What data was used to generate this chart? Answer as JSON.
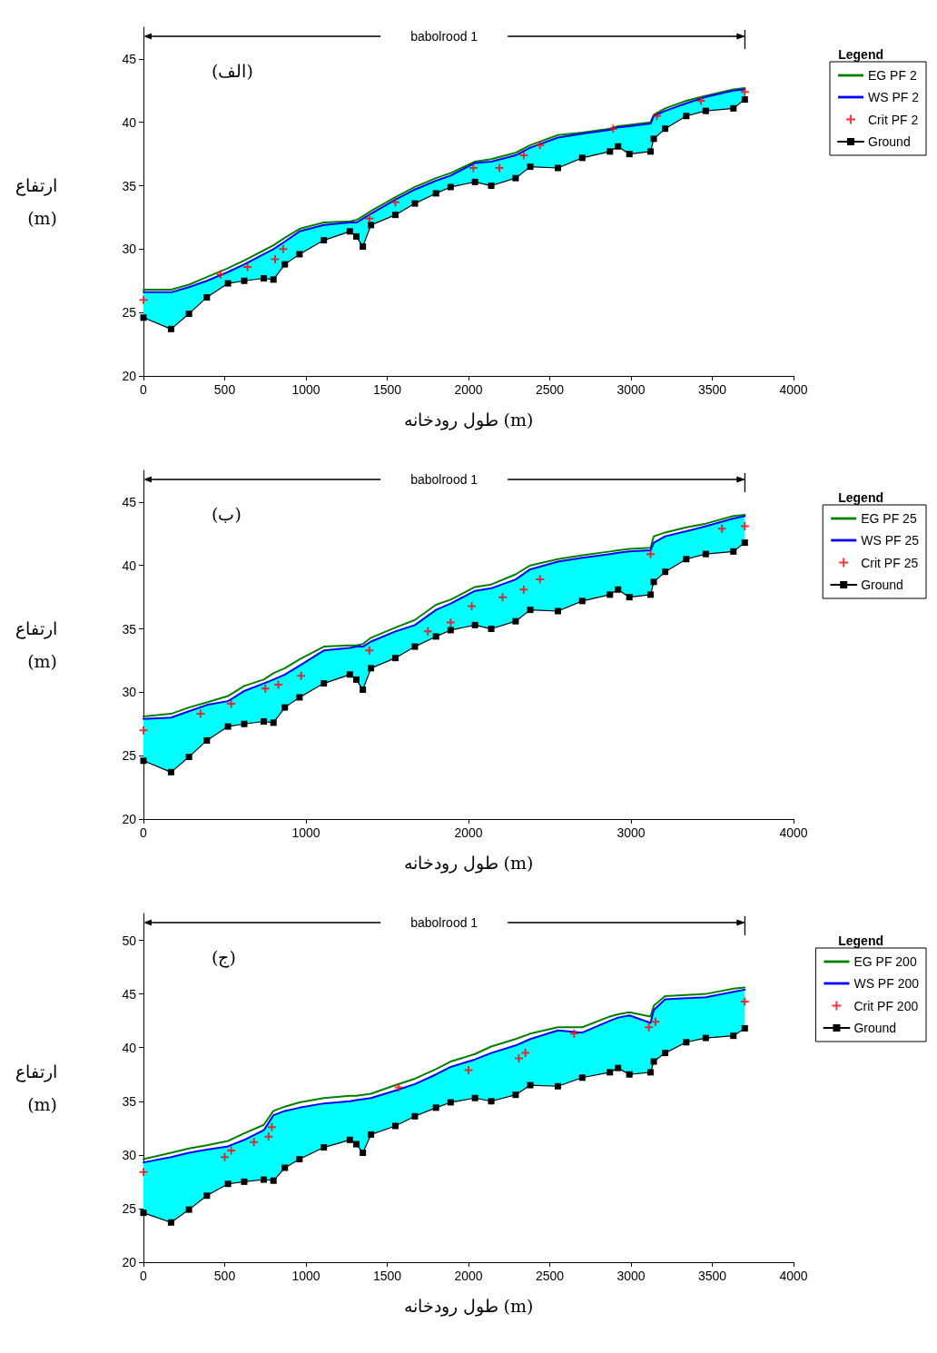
{
  "chart_data": [
    {
      "type": "line",
      "title": "(الف)",
      "xlabel": "طول رودخانه (m)",
      "ylabel": "ارتفاع (m)",
      "legend_title": "Legend",
      "legend": "right",
      "grid": false,
      "annotations": [
        "babolrood 1"
      ],
      "xlim": [
        0,
        4000
      ],
      "xticks": [
        0,
        500,
        1000,
        1500,
        2000,
        2500,
        3000,
        3500,
        4000
      ],
      "ylim": [
        20,
        47.5
      ],
      "yticks": [
        20,
        25,
        30,
        35,
        40,
        45
      ],
      "x": [
        0,
        170,
        280,
        390,
        520,
        620,
        740,
        800,
        870,
        960,
        1110,
        1270,
        1310,
        1350,
        1400,
        1550,
        1670,
        1800,
        1890,
        2040,
        2140,
        2290,
        2380,
        2550,
        2700,
        2870,
        2920,
        2990,
        3120,
        3140,
        3210,
        3340,
        3460,
        3630,
        3700
      ],
      "series": [
        {
          "name": "EG PF 2",
          "color": "#008000",
          "marker": "none",
          "line_style": "solid",
          "values": [
            26.8,
            26.8,
            27.2,
            27.8,
            28.5,
            29.1,
            29.9,
            30.3,
            30.9,
            31.6,
            32.1,
            32.2,
            32.3,
            32.6,
            33.0,
            34.1,
            34.9,
            35.6,
            36.0,
            36.9,
            37.1,
            37.6,
            38.2,
            39.0,
            39.2,
            39.5,
            39.7,
            39.8,
            40.0,
            40.6,
            41.1,
            41.7,
            42.1,
            42.6,
            42.7
          ]
        },
        {
          "name": "WS PF 2",
          "color": "#0000ff",
          "marker": "none",
          "line_style": "solid",
          "values": [
            26.6,
            26.6,
            27.0,
            27.5,
            28.2,
            28.8,
            29.6,
            30.0,
            30.6,
            31.4,
            31.9,
            32.1,
            32.1,
            32.4,
            32.8,
            33.9,
            34.7,
            35.4,
            35.8,
            36.8,
            36.9,
            37.4,
            38.0,
            38.8,
            39.1,
            39.4,
            39.6,
            39.7,
            39.9,
            40.5,
            40.9,
            41.5,
            42.0,
            42.5,
            42.6
          ],
          "lower": [
            24.6,
            23.7,
            24.9,
            26.2,
            27.3,
            27.5,
            27.7,
            27.6,
            28.8,
            29.6,
            30.7,
            31.4,
            31.0,
            30.2,
            31.9,
            32.7,
            33.6,
            34.4,
            34.9,
            35.3,
            35.0,
            35.6,
            36.5,
            36.4,
            37.2,
            37.7,
            38.1,
            37.5,
            37.7,
            38.7,
            39.5,
            40.5,
            40.9,
            41.1,
            41.8
          ],
          "upper": [
            26.6,
            26.6,
            27.0,
            27.5,
            28.2,
            28.8,
            29.6,
            30.0,
            30.6,
            31.4,
            31.9,
            32.1,
            32.1,
            32.4,
            32.8,
            33.9,
            34.7,
            35.4,
            35.8,
            36.8,
            36.9,
            37.4,
            38.0,
            38.8,
            39.1,
            39.4,
            39.6,
            39.7,
            39.9,
            40.5,
            40.9,
            41.5,
            42.0,
            42.5,
            42.6
          ]
        },
        {
          "name": "Crit PF 2",
          "type": "scatter",
          "color": "#ff0000",
          "marker": "cross",
          "x": [
            0,
            475,
            640,
            810,
            860,
            1390,
            1550,
            2030,
            2190,
            2340,
            2440,
            2890,
            3160,
            3430,
            3700
          ],
          "values": [
            26.0,
            28.0,
            28.6,
            29.2,
            30.0,
            32.4,
            33.7,
            36.4,
            36.4,
            37.4,
            38.2,
            39.5,
            40.5,
            41.7,
            42.4
          ]
        },
        {
          "name": "Ground",
          "color": "#000000",
          "marker": "square",
          "line_style": "solid",
          "values": [
            24.6,
            23.7,
            24.9,
            26.2,
            27.3,
            27.5,
            27.7,
            27.6,
            28.8,
            29.6,
            30.7,
            31.4,
            31.0,
            30.2,
            31.9,
            32.7,
            33.6,
            34.4,
            34.9,
            35.3,
            35.0,
            35.6,
            36.5,
            36.4,
            37.2,
            37.7,
            38.1,
            37.5,
            37.7,
            38.7,
            39.5,
            40.5,
            40.9,
            41.1,
            41.8
          ]
        }
      ]
    },
    {
      "type": "line",
      "title": "(ب)",
      "xlabel": "طول رودخانه (m)",
      "ylabel": "ارتفاع (m)",
      "legend_title": "Legend",
      "legend": "right",
      "grid": false,
      "annotations": [
        "babolrood 1"
      ],
      "xlim": [
        0,
        4000
      ],
      "xticks": [
        0,
        1000,
        2000,
        3000,
        4000
      ],
      "ylim": [
        20,
        47.5
      ],
      "yticks": [
        20,
        25,
        30,
        35,
        40,
        45
      ],
      "x": [
        0,
        170,
        280,
        390,
        520,
        620,
        740,
        800,
        870,
        960,
        1110,
        1270,
        1310,
        1350,
        1400,
        1550,
        1670,
        1800,
        1890,
        2040,
        2140,
        2290,
        2380,
        2550,
        2700,
        2870,
        2920,
        2990,
        3120,
        3140,
        3210,
        3340,
        3460,
        3630,
        3700
      ],
      "series": [
        {
          "name": "EG PF 25",
          "color": "#008000",
          "marker": "none",
          "line_style": "solid",
          "values": [
            28.1,
            28.3,
            28.8,
            29.2,
            29.7,
            30.5,
            31.0,
            31.5,
            31.9,
            32.6,
            33.6,
            33.7,
            33.7,
            33.8,
            34.3,
            35.1,
            35.7,
            36.9,
            37.3,
            38.3,
            38.5,
            39.3,
            40.0,
            40.5,
            40.8,
            41.1,
            41.2,
            41.3,
            41.4,
            42.3,
            42.6,
            43.0,
            43.3,
            43.9,
            44.0
          ]
        },
        {
          "name": "WS PF 25",
          "color": "#0000ff",
          "marker": "none",
          "line_style": "solid",
          "values": [
            27.9,
            28.0,
            28.5,
            29.0,
            29.3,
            30.1,
            30.7,
            31.0,
            31.4,
            32.1,
            33.3,
            33.5,
            33.6,
            33.6,
            34.0,
            34.8,
            35.3,
            36.5,
            37.0,
            38.0,
            38.2,
            38.9,
            39.7,
            40.3,
            40.6,
            40.9,
            41.0,
            41.1,
            41.2,
            41.8,
            42.3,
            42.7,
            43.1,
            43.7,
            43.9
          ],
          "lower": [
            24.6,
            23.7,
            24.9,
            26.2,
            27.3,
            27.5,
            27.7,
            27.6,
            28.8,
            29.6,
            30.7,
            31.4,
            31.0,
            30.2,
            31.9,
            32.7,
            33.6,
            34.4,
            34.9,
            35.3,
            35.0,
            35.6,
            36.5,
            36.4,
            37.2,
            37.7,
            38.1,
            37.5,
            37.7,
            38.7,
            39.5,
            40.5,
            40.9,
            41.1,
            41.8
          ],
          "upper": [
            27.9,
            28.0,
            28.5,
            29.0,
            29.3,
            30.1,
            30.7,
            31.0,
            31.4,
            32.1,
            33.3,
            33.5,
            33.6,
            33.6,
            34.0,
            34.8,
            35.3,
            36.5,
            37.0,
            38.0,
            38.2,
            38.9,
            39.7,
            40.3,
            40.6,
            40.9,
            41.0,
            41.1,
            41.2,
            41.8,
            42.3,
            42.7,
            43.1,
            43.7,
            43.9
          ]
        },
        {
          "name": "Crit PF 25",
          "type": "scatter",
          "color": "#ff0000",
          "marker": "cross",
          "x": [
            0,
            351,
            540,
            750,
            830,
            970,
            1390,
            1750,
            1890,
            2020,
            2210,
            2340,
            2440,
            3120,
            3560,
            3700
          ],
          "values": [
            27.0,
            28.3,
            29.1,
            30.3,
            30.6,
            31.3,
            33.3,
            34.8,
            35.5,
            36.8,
            37.5,
            38.1,
            38.9,
            40.9,
            42.9,
            43.1
          ]
        },
        {
          "name": "Ground",
          "color": "#000000",
          "marker": "square",
          "line_style": "solid",
          "values": [
            24.6,
            23.7,
            24.9,
            26.2,
            27.3,
            27.5,
            27.7,
            27.6,
            28.8,
            29.6,
            30.7,
            31.4,
            31.0,
            30.2,
            31.9,
            32.7,
            33.6,
            34.4,
            34.9,
            35.3,
            35.0,
            35.6,
            36.5,
            36.4,
            37.2,
            37.7,
            38.1,
            37.5,
            37.7,
            38.7,
            39.5,
            40.5,
            40.9,
            41.1,
            41.8
          ]
        }
      ]
    },
    {
      "type": "line",
      "title": "(ج)",
      "xlabel": "طول رودخانه (m)",
      "ylabel": "ارتفاع (m)",
      "legend_title": "Legend",
      "legend": "right",
      "grid": false,
      "annotations": [
        "babolrood 1"
      ],
      "xlim": [
        0,
        4000
      ],
      "xticks": [
        0,
        500,
        1000,
        1500,
        2000,
        2500,
        3000,
        3500,
        4000
      ],
      "ylim": [
        20,
        52.5
      ],
      "yticks": [
        20,
        25,
        30,
        35,
        40,
        45,
        50
      ],
      "x": [
        0,
        170,
        280,
        390,
        520,
        620,
        740,
        800,
        870,
        960,
        1110,
        1270,
        1310,
        1350,
        1400,
        1550,
        1670,
        1800,
        1890,
        2040,
        2140,
        2290,
        2380,
        2550,
        2700,
        2870,
        2920,
        2990,
        3120,
        3140,
        3210,
        3340,
        3460,
        3630,
        3700
      ],
      "series": [
        {
          "name": "EG PF 200",
          "color": "#008000",
          "marker": "none",
          "line_style": "solid",
          "values": [
            29.6,
            30.2,
            30.6,
            30.9,
            31.3,
            32.0,
            32.8,
            34.1,
            34.5,
            34.9,
            35.3,
            35.5,
            35.5,
            35.6,
            35.7,
            36.5,
            37.1,
            38.0,
            38.7,
            39.4,
            40.1,
            40.8,
            41.3,
            41.9,
            41.9,
            42.9,
            43.1,
            43.3,
            42.9,
            43.9,
            44.8,
            44.9,
            45.0,
            45.5,
            45.6
          ]
        },
        {
          "name": "WS PF 200",
          "color": "#0000ff",
          "marker": "none",
          "line_style": "solid",
          "values": [
            29.3,
            29.8,
            30.2,
            30.5,
            30.8,
            31.4,
            32.3,
            33.7,
            34.1,
            34.4,
            34.8,
            35.0,
            35.1,
            35.2,
            35.3,
            36.0,
            36.6,
            37.5,
            38.2,
            38.9,
            39.5,
            40.2,
            40.8,
            41.6,
            41.4,
            42.5,
            42.8,
            43.0,
            42.3,
            43.5,
            44.5,
            44.6,
            44.7,
            45.2,
            45.4
          ],
          "lower": [
            24.6,
            23.7,
            24.9,
            26.2,
            27.3,
            27.5,
            27.7,
            27.6,
            28.8,
            29.6,
            30.7,
            31.4,
            31.0,
            30.2,
            31.9,
            32.7,
            33.6,
            34.4,
            34.9,
            35.3,
            35.0,
            35.6,
            36.5,
            36.4,
            37.2,
            37.7,
            38.1,
            37.5,
            37.7,
            38.7,
            39.5,
            40.5,
            40.9,
            41.1,
            41.8
          ],
          "upper": [
            29.3,
            29.8,
            30.2,
            30.5,
            30.8,
            31.4,
            32.3,
            33.7,
            34.1,
            34.4,
            34.8,
            35.0,
            35.1,
            35.2,
            35.3,
            36.0,
            36.6,
            37.5,
            38.2,
            38.9,
            39.5,
            40.2,
            40.8,
            41.6,
            41.4,
            42.5,
            42.8,
            43.0,
            42.3,
            43.5,
            44.5,
            44.6,
            44.7,
            45.2,
            45.4
          ]
        },
        {
          "name": "Crit PF 200",
          "type": "scatter",
          "color": "#ff0000",
          "marker": "cross",
          "x": [
            0,
            500,
            540,
            680,
            770,
            790,
            1570,
            2000,
            2310,
            2350,
            2650,
            3110,
            3150,
            3700
          ],
          "values": [
            28.4,
            29.8,
            30.4,
            31.2,
            31.7,
            32.6,
            36.3,
            37.9,
            39.0,
            39.5,
            41.3,
            41.9,
            42.4,
            44.3
          ]
        },
        {
          "name": "Ground",
          "color": "#000000",
          "marker": "square",
          "line_style": "solid",
          "values": [
            24.6,
            23.7,
            24.9,
            26.2,
            27.3,
            27.5,
            27.7,
            27.6,
            28.8,
            29.6,
            30.7,
            31.4,
            31.0,
            30.2,
            31.9,
            32.7,
            33.6,
            34.4,
            34.9,
            35.3,
            35.0,
            35.6,
            36.5,
            36.4,
            37.2,
            37.7,
            38.1,
            37.5,
            37.7,
            38.7,
            39.5,
            40.5,
            40.9,
            41.1,
            41.8
          ]
        }
      ]
    }
  ]
}
